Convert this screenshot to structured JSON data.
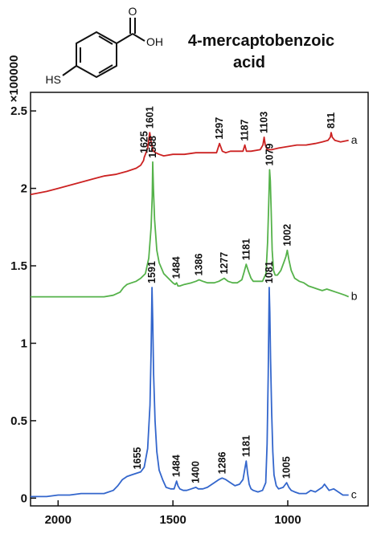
{
  "chart_data": {
    "type": "line",
    "title_lines": [
      "4-mercaptobenzoic",
      "acid"
    ],
    "y_multiplier": "×100000",
    "xlabel": "",
    "ylabel": "",
    "x_reversed": true,
    "xlim": [
      2120,
      650
    ],
    "ylim": [
      -0.05,
      2.62
    ],
    "x_ticks": [
      {
        "value": 2000,
        "label": "2000"
      },
      {
        "value": 1500,
        "label": "1500"
      },
      {
        "value": 1000,
        "label": "1000"
      }
    ],
    "y_ticks": [
      {
        "value": 0,
        "label": "0"
      },
      {
        "value": 0.5,
        "label": "0.5"
      },
      {
        "value": 1,
        "label": "1"
      },
      {
        "value": 1.5,
        "label": "1.5"
      },
      {
        "value": 2,
        "label": "2"
      },
      {
        "value": 2.5,
        "label": "2.5"
      }
    ],
    "grid": false,
    "legend": "none",
    "molecule_labels": {
      "sh": "HS",
      "oh": "OH",
      "o": "O"
    },
    "series": [
      {
        "name": "a",
        "color": "#cc2222",
        "x": [
          2120,
          2050,
          2000,
          1950,
          1900,
          1850,
          1800,
          1750,
          1700,
          1660,
          1640,
          1628,
          1625,
          1620,
          1610,
          1601,
          1595,
          1590,
          1585,
          1575,
          1560,
          1540,
          1500,
          1450,
          1400,
          1350,
          1310,
          1297,
          1285,
          1270,
          1250,
          1220,
          1195,
          1187,
          1180,
          1160,
          1120,
          1108,
          1103,
          1098,
          1090,
          1070,
          1040,
          1000,
          960,
          920,
          880,
          850,
          825,
          815,
          811,
          806,
          795,
          770,
          735
        ],
        "y": [
          1.96,
          1.98,
          2.0,
          2.02,
          2.04,
          2.06,
          2.08,
          2.09,
          2.11,
          2.13,
          2.15,
          2.18,
          2.2,
          2.22,
          2.26,
          2.36,
          2.3,
          2.26,
          2.24,
          2.23,
          2.22,
          2.21,
          2.22,
          2.22,
          2.23,
          2.23,
          2.23,
          2.29,
          2.24,
          2.23,
          2.24,
          2.24,
          2.24,
          2.28,
          2.24,
          2.24,
          2.25,
          2.28,
          2.33,
          2.28,
          2.25,
          2.25,
          2.26,
          2.27,
          2.28,
          2.28,
          2.29,
          2.3,
          2.31,
          2.33,
          2.36,
          2.33,
          2.31,
          2.3,
          2.31
        ]
      },
      {
        "name": "b",
        "color": "#55b24a",
        "x": [
          2120,
          2050,
          2000,
          1950,
          1900,
          1850,
          1800,
          1760,
          1730,
          1715,
          1700,
          1680,
          1660,
          1640,
          1620,
          1605,
          1595,
          1590,
          1588,
          1585,
          1580,
          1570,
          1560,
          1540,
          1520,
          1500,
          1490,
          1484,
          1478,
          1470,
          1450,
          1420,
          1400,
          1386,
          1370,
          1350,
          1320,
          1300,
          1277,
          1260,
          1240,
          1220,
          1200,
          1190,
          1181,
          1170,
          1160,
          1150,
          1130,
          1110,
          1095,
          1088,
          1083,
          1079,
          1076,
          1072,
          1068,
          1062,
          1055,
          1045,
          1030,
          1015,
          1008,
          1002,
          995,
          985,
          970,
          950,
          930,
          910,
          890,
          870,
          850,
          830,
          810,
          790,
          770,
          750,
          735
        ],
        "y": [
          1.3,
          1.3,
          1.3,
          1.3,
          1.3,
          1.3,
          1.3,
          1.31,
          1.33,
          1.36,
          1.38,
          1.39,
          1.4,
          1.42,
          1.45,
          1.55,
          1.75,
          1.95,
          2.17,
          2.0,
          1.8,
          1.6,
          1.52,
          1.45,
          1.42,
          1.39,
          1.38,
          1.39,
          1.37,
          1.37,
          1.38,
          1.39,
          1.4,
          1.41,
          1.4,
          1.39,
          1.39,
          1.4,
          1.42,
          1.4,
          1.39,
          1.39,
          1.41,
          1.46,
          1.51,
          1.46,
          1.42,
          1.4,
          1.4,
          1.4,
          1.45,
          1.65,
          1.9,
          2.12,
          2.05,
          1.85,
          1.6,
          1.47,
          1.44,
          1.44,
          1.47,
          1.53,
          1.56,
          1.6,
          1.54,
          1.47,
          1.42,
          1.4,
          1.39,
          1.37,
          1.36,
          1.35,
          1.34,
          1.35,
          1.34,
          1.33,
          1.32,
          1.31,
          1.3
        ]
      },
      {
        "name": "c",
        "color": "#3366cc",
        "x": [
          2120,
          2050,
          2000,
          1950,
          1900,
          1850,
          1800,
          1760,
          1740,
          1720,
          1700,
          1680,
          1660,
          1640,
          1625,
          1610,
          1600,
          1595,
          1591,
          1588,
          1584,
          1578,
          1570,
          1560,
          1545,
          1530,
          1510,
          1495,
          1484,
          1478,
          1470,
          1455,
          1440,
          1420,
          1400,
          1390,
          1370,
          1350,
          1320,
          1300,
          1286,
          1270,
          1250,
          1230,
          1210,
          1195,
          1188,
          1181,
          1175,
          1168,
          1160,
          1150,
          1130,
          1110,
          1096,
          1090,
          1085,
          1081,
          1078,
          1075,
          1070,
          1065,
          1060,
          1050,
          1040,
          1020,
          1005,
          995,
          985,
          970,
          950,
          920,
          900,
          880,
          860,
          850,
          840,
          820,
          800,
          780,
          760,
          750,
          735
        ],
        "y": [
          0.01,
          0.01,
          0.02,
          0.02,
          0.03,
          0.03,
          0.03,
          0.05,
          0.08,
          0.12,
          0.14,
          0.15,
          0.16,
          0.17,
          0.2,
          0.32,
          0.6,
          0.95,
          1.36,
          1.15,
          0.8,
          0.5,
          0.3,
          0.18,
          0.12,
          0.07,
          0.06,
          0.06,
          0.11,
          0.08,
          0.06,
          0.05,
          0.05,
          0.06,
          0.07,
          0.06,
          0.06,
          0.07,
          0.1,
          0.12,
          0.13,
          0.12,
          0.1,
          0.08,
          0.09,
          0.12,
          0.18,
          0.24,
          0.16,
          0.09,
          0.06,
          0.05,
          0.04,
          0.05,
          0.1,
          0.35,
          0.8,
          1.36,
          1.2,
          0.9,
          0.55,
          0.3,
          0.15,
          0.08,
          0.06,
          0.07,
          0.1,
          0.07,
          0.05,
          0.04,
          0.03,
          0.03,
          0.05,
          0.04,
          0.06,
          0.07,
          0.09,
          0.05,
          0.06,
          0.04,
          0.02,
          0.02,
          0.02
        ]
      }
    ],
    "annotations": [
      {
        "label": "1625",
        "x": 1625,
        "y": 2.2,
        "series": "a"
      },
      {
        "label": "1601",
        "x": 1601,
        "y": 2.36,
        "series": "a"
      },
      {
        "label": "1297",
        "x": 1297,
        "y": 2.29,
        "series": "a"
      },
      {
        "label": "1187",
        "x": 1187,
        "y": 2.28,
        "series": "a"
      },
      {
        "label": "1103",
        "x": 1103,
        "y": 2.33,
        "series": "a"
      },
      {
        "label": "811",
        "x": 811,
        "y": 2.36,
        "series": "a"
      },
      {
        "label": "1588",
        "x": 1588,
        "y": 2.17,
        "series": "b"
      },
      {
        "label": "1484",
        "x": 1484,
        "y": 1.39,
        "series": "b"
      },
      {
        "label": "1386",
        "x": 1386,
        "y": 1.41,
        "series": "b"
      },
      {
        "label": "1277",
        "x": 1277,
        "y": 1.42,
        "series": "b"
      },
      {
        "label": "1181",
        "x": 1181,
        "y": 1.51,
        "series": "b"
      },
      {
        "label": "1079",
        "x": 1079,
        "y": 2.12,
        "series": "b"
      },
      {
        "label": "1002",
        "x": 1002,
        "y": 1.6,
        "series": "b"
      },
      {
        "label": "1655",
        "x": 1655,
        "y": 0.16,
        "series": "c"
      },
      {
        "label": "1591",
        "x": 1591,
        "y": 1.36,
        "series": "c"
      },
      {
        "label": "1484",
        "x": 1484,
        "y": 0.11,
        "series": "c"
      },
      {
        "label": "1400",
        "x": 1400,
        "y": 0.07,
        "series": "c"
      },
      {
        "label": "1286",
        "x": 1286,
        "y": 0.13,
        "series": "c"
      },
      {
        "label": "1181",
        "x": 1181,
        "y": 0.24,
        "series": "c"
      },
      {
        "label": "1081",
        "x": 1081,
        "y": 1.36,
        "series": "c"
      },
      {
        "label": "1005",
        "x": 1005,
        "y": 0.1,
        "series": "c"
      }
    ]
  }
}
